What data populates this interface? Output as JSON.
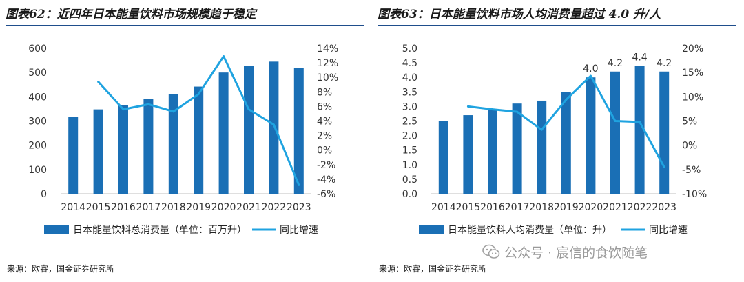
{
  "chart_data": [
    {
      "type": "bar+line",
      "title": "图表62：近四年日本能量饮料市场规模趋于稳定",
      "categories": [
        "2014",
        "2015",
        "2016",
        "2017",
        "2018",
        "2019",
        "2020",
        "2021",
        "2022",
        "2023"
      ],
      "series": [
        {
          "name": "日本能量饮料总消费量（单位：百万升）",
          "type": "bar",
          "axis": "left",
          "values": [
            318,
            348,
            366,
            390,
            412,
            442,
            500,
            527,
            545,
            520
          ]
        },
        {
          "name": "同比增速",
          "type": "line",
          "axis": "right",
          "values": [
            null,
            9.4,
            5.6,
            6.3,
            5.3,
            7.7,
            12.9,
            5.6,
            3.5,
            -4.8
          ]
        }
      ],
      "ylim_left": [
        0,
        600
      ],
      "yticks_left": [
        "0",
        "100",
        "200",
        "300",
        "400",
        "500",
        "600"
      ],
      "ylim_right": [
        -6,
        14
      ],
      "yticks_right": [
        "-6%",
        "-4%",
        "-2%",
        "0%",
        "2%",
        "4%",
        "6%",
        "8%",
        "10%",
        "12%",
        "14%"
      ],
      "data_labels": [],
      "legend_position": "bottom",
      "source": "来源：欧睿，国金证券研究所"
    },
    {
      "type": "bar+line",
      "title": "图表63：日本能量饮料市场人均消费量超过 4.0 升/人",
      "categories": [
        "2014",
        "2015",
        "2016",
        "2017",
        "2018",
        "2019",
        "2020",
        "2021",
        "2022",
        "2023"
      ],
      "series": [
        {
          "name": "日本能量饮料人均消费量（单位：升）",
          "type": "bar",
          "axis": "left",
          "values": [
            2.5,
            2.7,
            2.9,
            3.1,
            3.2,
            3.5,
            4.0,
            4.2,
            4.4,
            4.2
          ]
        },
        {
          "name": "同比增速",
          "type": "line",
          "axis": "right",
          "values": [
            null,
            8.0,
            7.4,
            6.9,
            3.2,
            9.4,
            14.3,
            5.0,
            4.8,
            -4.5
          ]
        }
      ],
      "ylim_left": [
        0,
        5
      ],
      "yticks_left": [
        "0.0",
        "0.5",
        "1.0",
        "1.5",
        "2.0",
        "2.5",
        "3.0",
        "3.5",
        "4.0",
        "4.5",
        "5.0"
      ],
      "ylim_right": [
        -10,
        20
      ],
      "yticks_right": [
        "-10%",
        "-5%",
        "0%",
        "5%",
        "10%",
        "15%",
        "20%"
      ],
      "data_labels": [
        {
          "index": 6,
          "text": "4.0"
        },
        {
          "index": 7,
          "text": "4.2"
        },
        {
          "index": 8,
          "text": "4.4"
        },
        {
          "index": 9,
          "text": "4.2"
        }
      ],
      "legend_position": "bottom",
      "source": "来源：欧睿，国金证券研究所"
    }
  ],
  "colors": {
    "bar": "#1a6fb5",
    "line": "#1fa3e0",
    "title_rule": "#1f4e8c"
  },
  "watermark": {
    "icon": "wechat-icon",
    "text": "公众号 · 宸信的食饮随笔"
  }
}
